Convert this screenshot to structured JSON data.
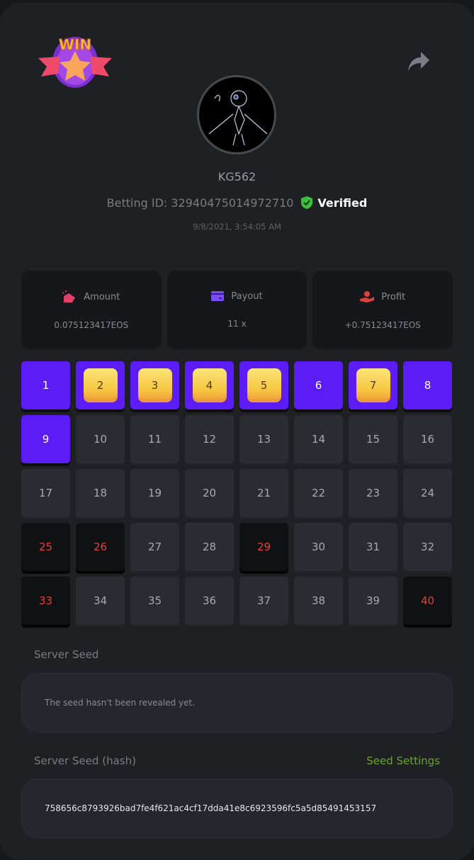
{
  "header": {
    "logo_text": "WIN",
    "username": "KG562",
    "betting_id": "Betting ID: 32940475014972710",
    "verified": "Verified",
    "date": "9/8/2021, 3:54:05 AM"
  },
  "stats": [
    {
      "label": "Amount",
      "value": "0.075123417EOS",
      "icon": "money-bag-icon",
      "color": "#e0406a"
    },
    {
      "label": "Payout",
      "value": "11 x",
      "icon": "card-icon",
      "color": "#7b4df7"
    },
    {
      "label": "Profit",
      "value": "+0.75123417EOS",
      "icon": "hand-coin-icon",
      "color": "#e0413b"
    }
  ],
  "grid": {
    "numbers": [
      "1",
      "2",
      "3",
      "4",
      "5",
      "6",
      "7",
      "8",
      "9",
      "10",
      "11",
      "12",
      "13",
      "14",
      "15",
      "16",
      "17",
      "18",
      "19",
      "20",
      "21",
      "22",
      "23",
      "24",
      "25",
      "26",
      "27",
      "28",
      "29",
      "30",
      "31",
      "32",
      "33",
      "34",
      "35",
      "36",
      "37",
      "38",
      "39",
      "40"
    ],
    "selected": [
      1,
      2,
      3,
      4,
      5,
      6,
      7,
      8,
      9
    ],
    "hits": [
      2,
      3,
      4,
      5,
      7
    ],
    "drawn_unselected": [
      25,
      26,
      29,
      33,
      40
    ]
  },
  "server_seed": {
    "label": "Server Seed",
    "value": "The seed hasn't been revealed yet."
  },
  "server_seed_hash": {
    "label": "Server Seed (hash)",
    "value": "758656c8793926bad7fe4f621ac4cf17dda41e8c6923596fc5a5d85491453157",
    "settings_link": "Seed Settings"
  },
  "colors": {
    "accent": "#5b1cf6",
    "link": "#6aa52a",
    "miss": "#e0413b"
  }
}
